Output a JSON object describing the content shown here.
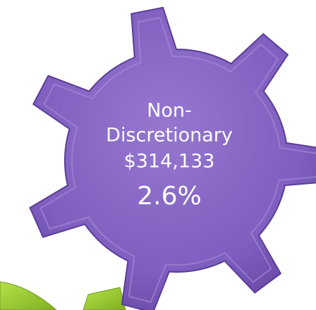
{
  "label_lines": [
    "Non-",
    "Discretionary"
  ],
  "amount": "$314,133",
  "percent": "2.6%"
}
